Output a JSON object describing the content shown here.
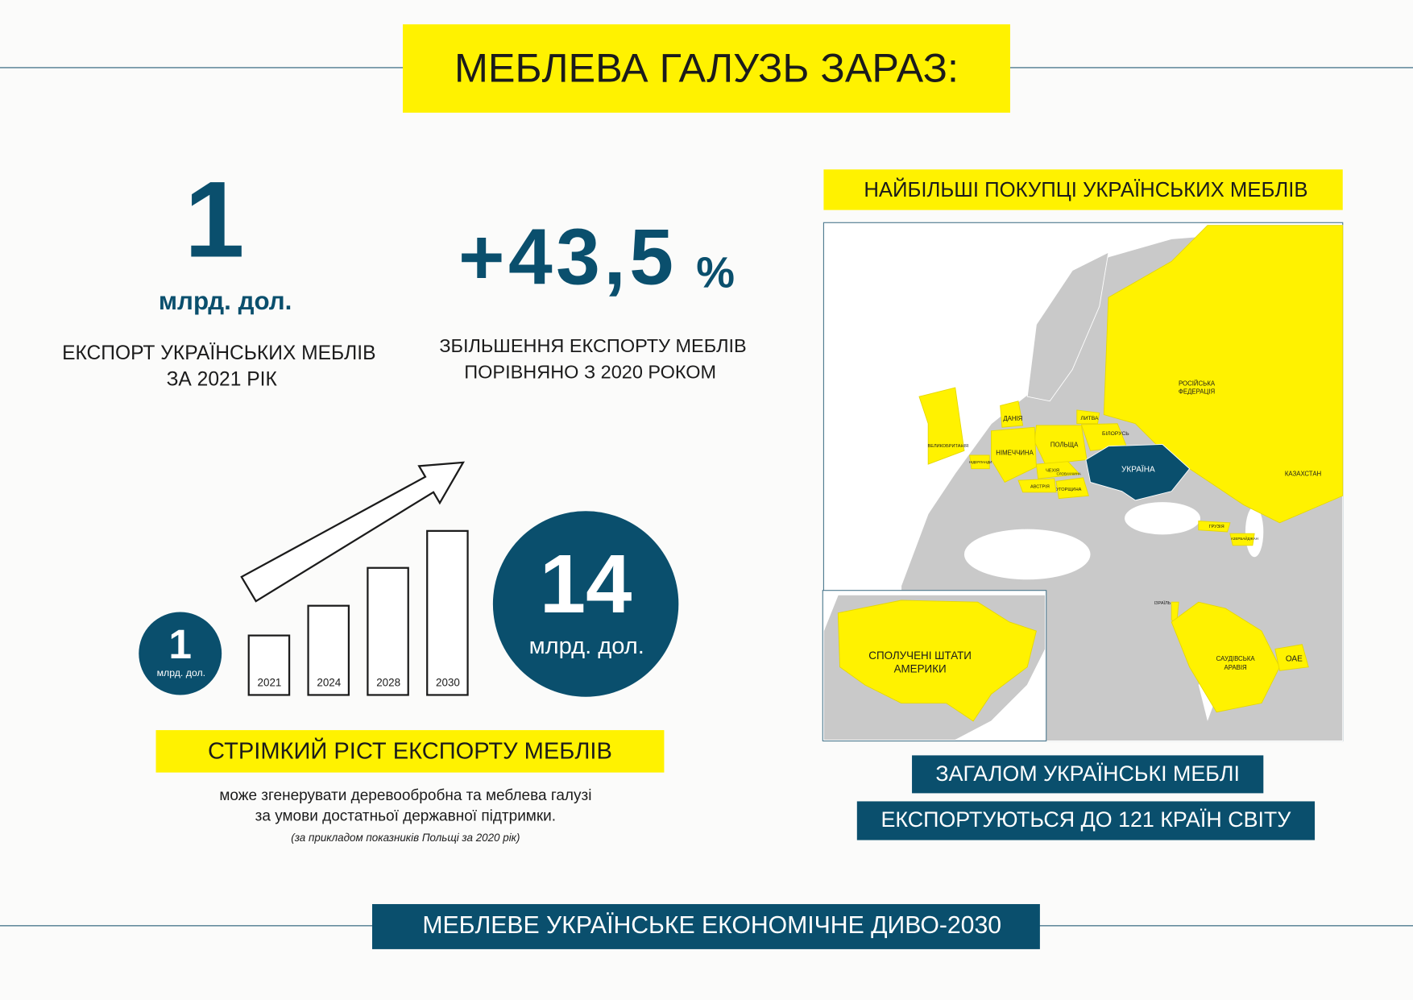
{
  "header": {
    "title": "МЕБЛЕВА ГАЛУЗЬ ЗАРАЗ:"
  },
  "stat_export": {
    "value": "1",
    "unit": "млрд. дол.",
    "caption": [
      "ЕКСПОРТ УКРАЇНСЬКИХ МЕБЛІВ",
      "ЗА 2021 РІК"
    ]
  },
  "stat_growth": {
    "value": "+43,5",
    "unit": "%",
    "caption": [
      "ЗБІЛЬШЕННЯ ЕКСПОРТУ МЕБЛІВ",
      "ПОРІВНЯНО З 2020 РОКОМ"
    ]
  },
  "growth_chart": {
    "start": {
      "value": "1",
      "unit": "млрд. дол."
    },
    "years": [
      "2021",
      "2024",
      "2028",
      "2030"
    ],
    "end": {
      "value": "14",
      "unit": "млрд. дол."
    }
  },
  "growth_text": {
    "heading": "СТРІМКИЙ РІСТ ЕКСПОРТУ МЕБЛІВ",
    "lines": [
      "може згенерувати деревообробна та меблева галузі",
      "за умови достатньої державної підтримки."
    ],
    "note": "(за прикладом показників Польщі за 2020 рік)"
  },
  "map": {
    "title": "НАЙБІЛЬШІ ПОКУПЦІ УКРАЇНСЬКИХ МЕБЛІВ",
    "countries": {
      "russia": [
        "РОСІЙСЬКА",
        "ФЕДЕРАЦІЯ"
      ],
      "denmark": "ДАНІЯ",
      "lithuania": "ЛИТВА",
      "belarus": "БІЛОРУСЬ",
      "uk": "ВЕЛИКОБРИТАНІЯ",
      "netherlands": "НІДЕРЛАНДИ",
      "poland": "ПОЛЬЩА",
      "germany": "НІМЕЧЧИНА",
      "czech": "ЧЕХІЯ",
      "slovakia": "СЛОВАЧЧИНА",
      "austria": "АВСТРІЯ",
      "hungary": "УГОРЩИНА",
      "ukraine": "УКРАЇНА",
      "kazakhstan": "КАЗАХСТАН",
      "georgia": "ГРУЗІЯ",
      "azerbaijan": "АЗЕРБАЙДЖАН",
      "israel": "ІЗРАЇЛЬ",
      "saudi": [
        "САУДІВСЬКА",
        "АРАВІЯ"
      ],
      "uae": "ОАЕ",
      "usa": [
        "СПОЛУЧЕНІ ШТАТИ",
        "АМЕРИКИ"
      ]
    }
  },
  "summary": [
    "ЗАГАЛОМ УКРАЇНСЬКІ МЕБЛІ",
    "ЕКСПОРТУЮТЬСЯ ДО 121 КРАЇН СВІТУ"
  ],
  "footer": {
    "title": "МЕБЛЕВЕ УКРАЇНСЬКЕ ЕКОНОМІЧНЕ ДИВО-2030"
  }
}
